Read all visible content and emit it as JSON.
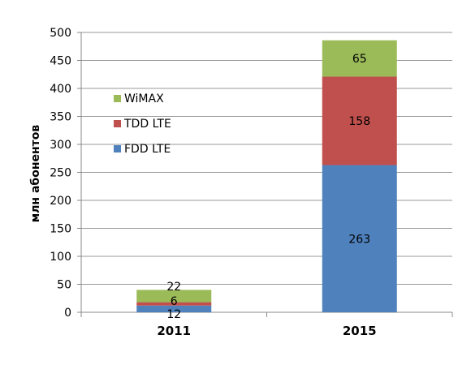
{
  "chart_data": {
    "type": "bar",
    "stacked": true,
    "categories": [
      "2011",
      "2015"
    ],
    "series": [
      {
        "name": "FDD LTE",
        "values": [
          12,
          263
        ],
        "color": "#4f81bd"
      },
      {
        "name": "TDD LTE",
        "values": [
          6,
          158
        ],
        "color": "#c0504d"
      },
      {
        "name": "WiMAX",
        "values": [
          22,
          65
        ],
        "color": "#9bbb59"
      }
    ],
    "title": "",
    "xlabel": "",
    "ylabel": "млн абонентов",
    "ylim": [
      0,
      500
    ],
    "yticks": [
      0,
      50,
      100,
      150,
      200,
      250,
      300,
      350,
      400,
      450,
      500
    ],
    "grid": true,
    "legend_position": "left"
  }
}
